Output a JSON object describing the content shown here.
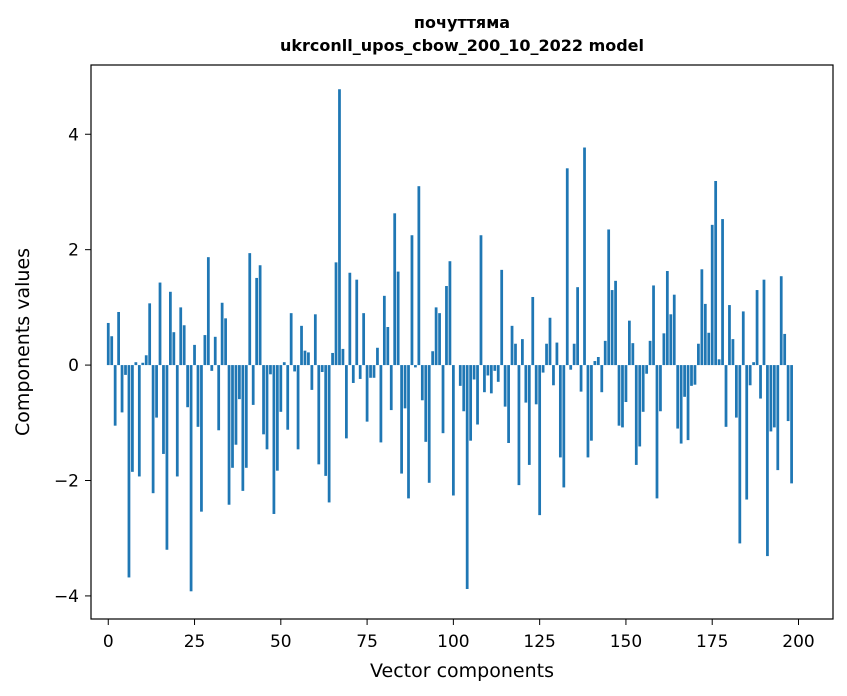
{
  "chart_data": {
    "type": "bar",
    "title_line1": "почуттяма",
    "title_line2": "ukrconll_upos_cbow_200_10_2022 model",
    "xlabel": "Vector components",
    "ylabel": "Components values",
    "xlim": [
      -5,
      210
    ],
    "ylim": [
      -4.4,
      5.2
    ],
    "x_ticks": [
      0,
      25,
      50,
      75,
      100,
      125,
      150,
      175,
      200
    ],
    "y_ticks": [
      -4,
      -2,
      0,
      2,
      4
    ],
    "y_tick_labels": [
      "−4",
      "−2",
      "0",
      "2",
      "4"
    ],
    "bar_color": "#1f77b4",
    "grid": false,
    "values": [
      0.73,
      0.5,
      -1.05,
      0.92,
      -0.82,
      -0.17,
      -3.68,
      -1.85,
      0.05,
      -1.93,
      0.04,
      0.17,
      1.07,
      -2.22,
      -0.91,
      1.43,
      -1.54,
      -3.2,
      1.27,
      0.57,
      -1.93,
      1.0,
      0.69,
      -0.73,
      -3.92,
      0.35,
      -1.07,
      -2.54,
      0.52,
      1.87,
      -0.1,
      0.49,
      -1.13,
      1.08,
      0.81,
      -2.42,
      -1.78,
      -1.38,
      -0.59,
      -2.18,
      -1.78,
      1.94,
      -0.69,
      1.51,
      1.73,
      -1.2,
      -1.46,
      -0.16,
      -2.58,
      -1.83,
      -0.81,
      0.05,
      -1.12,
      0.9,
      -0.11,
      -1.46,
      0.68,
      0.25,
      0.22,
      -0.43,
      0.88,
      -1.72,
      -0.12,
      -1.92,
      -2.38,
      0.21,
      1.78,
      4.78,
      0.28,
      -1.27,
      1.6,
      -0.31,
      1.48,
      -0.24,
      0.9,
      -0.98,
      -0.22,
      -0.22,
      0.3,
      -1.34,
      1.2,
      0.66,
      -0.78,
      2.63,
      1.62,
      -1.88,
      -0.75,
      -2.31,
      2.25,
      -0.04,
      3.1,
      -0.61,
      -1.33,
      -2.04,
      0.24,
      1.0,
      0.9,
      -1.18,
      1.37,
      1.8,
      -2.26,
      0.0,
      -0.36,
      -0.8,
      -3.88,
      -1.31,
      -0.25,
      -1.03,
      2.25,
      -0.47,
      -0.18,
      -0.49,
      -0.1,
      -0.29,
      1.65,
      -0.72,
      -1.35,
      0.68,
      0.37,
      -2.08,
      0.45,
      -0.65,
      -1.73,
      1.18,
      -0.68,
      -2.6,
      -0.13,
      0.37,
      0.82,
      -0.35,
      0.39,
      -1.6,
      -2.12,
      3.41,
      -0.08,
      0.37,
      1.35,
      -0.46,
      3.77,
      -1.6,
      -1.31,
      0.07,
      0.14,
      -0.47,
      0.42,
      2.35,
      1.3,
      1.46,
      -1.05,
      -1.08,
      -0.64,
      0.77,
      0.38,
      -1.73,
      -1.41,
      -0.81,
      -0.15,
      0.42,
      1.38,
      -2.31,
      -0.8,
      0.55,
      1.63,
      0.88,
      1.22,
      -1.1,
      -1.36,
      -0.55,
      -1.3,
      -0.36,
      -0.34,
      0.37,
      1.66,
      1.06,
      0.56,
      2.43,
      3.19,
      0.1,
      2.53,
      -1.07,
      1.04,
      0.45,
      -0.91,
      -3.09,
      0.93,
      -2.33,
      -0.35,
      0.05,
      1.3,
      -0.58,
      1.48,
      -3.31,
      -1.15,
      -1.08,
      -1.82,
      1.54,
      0.54,
      -0.97,
      -2.05
    ]
  }
}
